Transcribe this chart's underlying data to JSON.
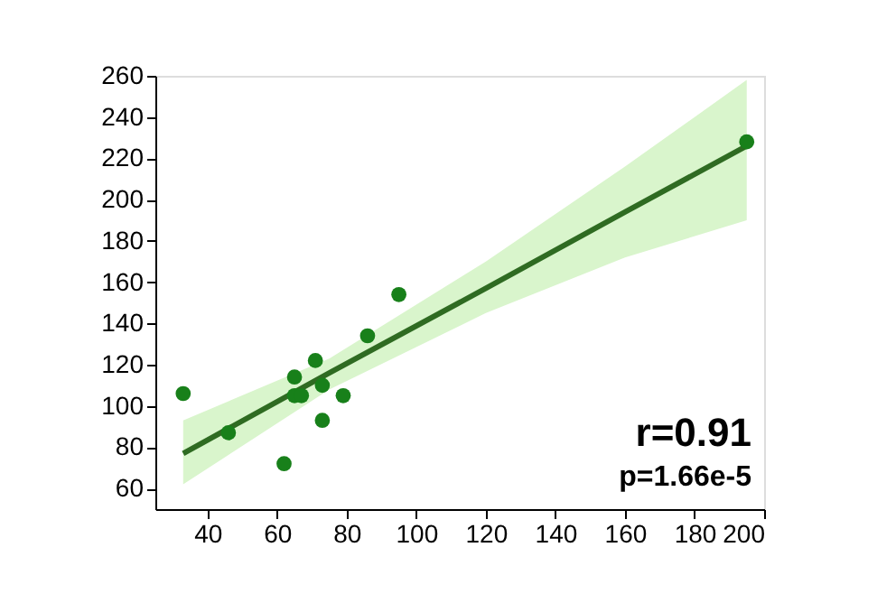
{
  "chart_data": {
    "type": "scatter",
    "xlim": [
      25,
      200
    ],
    "ylim": [
      50,
      260
    ],
    "xticks": [
      40,
      60,
      80,
      100,
      120,
      140,
      160,
      180,
      200
    ],
    "yticks": [
      60,
      80,
      100,
      120,
      140,
      160,
      180,
      200,
      220,
      240,
      260
    ],
    "grid": false,
    "marker": "circle",
    "series": [
      {
        "color": "#18801a",
        "x": [
          33,
          46,
          62,
          65,
          65,
          67,
          71,
          73,
          73,
          79,
          86,
          95,
          195
        ],
        "values": [
          106,
          87,
          72,
          114,
          105,
          105,
          122,
          110,
          93,
          105,
          134,
          154,
          228
        ]
      },
      {
        "type": "line",
        "marker": "none",
        "color": "#2f6b22",
        "x": [
          33,
          75,
          120,
          160,
          195
        ],
        "values": [
          77,
          116,
          157,
          194,
          226
        ],
        "lower": [
          62,
          108,
          145,
          172,
          190
        ],
        "upper": [
          93,
          123,
          170,
          216,
          258
        ]
      }
    ],
    "annotations": [
      "r=0.91",
      "p=1.66e-5"
    ]
  }
}
